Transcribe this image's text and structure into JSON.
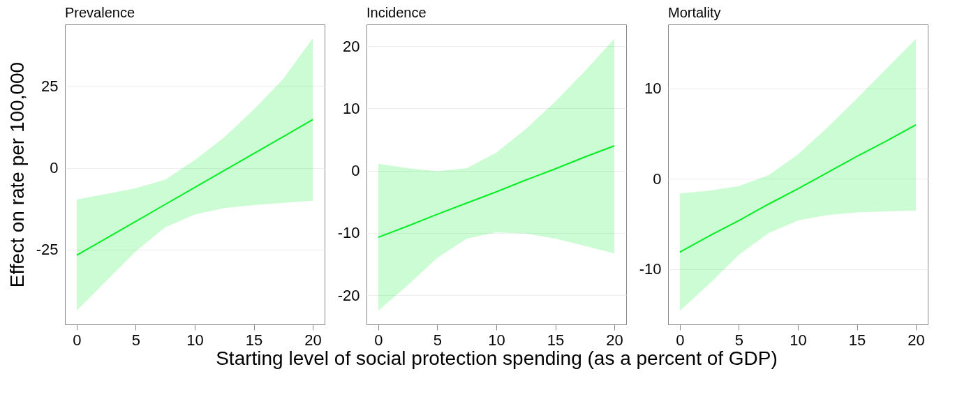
{
  "chart_data": [
    {
      "type": "line",
      "title": "Prevalence",
      "ylabel": "Effect on rate per 100,000",
      "x": [
        0,
        2.5,
        5,
        7.5,
        10,
        12.5,
        15,
        17.5,
        20
      ],
      "xlim": [
        -1,
        21
      ],
      "xticks": [
        0,
        5,
        10,
        15,
        20
      ],
      "ylim": [
        -48,
        44
      ],
      "yticks": [
        -25,
        0,
        25
      ],
      "grid": "y",
      "series": [
        {
          "color": "#00ee22",
          "values": [
            -26.8,
            -21.6,
            -16.4,
            -11.2,
            -6.0,
            -0.8,
            4.4,
            9.6,
            14.8
          ],
          "lower": [
            -43.8,
            -34.7,
            -25.6,
            -18.2,
            -14.3,
            -12.3,
            -11.4,
            -10.7,
            -10.1
          ],
          "upper": [
            -9.7,
            -8.0,
            -6.2,
            -3.6,
            2.4,
            9.4,
            17.9,
            27.3,
            39.8
          ]
        }
      ]
    },
    {
      "type": "line",
      "title": "Incidence",
      "xlabel": "Starting level of social protection spending (as a percent of GDP)",
      "x": [
        0,
        2.5,
        5,
        7.5,
        10,
        12.5,
        15,
        17.5,
        20
      ],
      "xlim": [
        -1,
        21
      ],
      "xticks": [
        0,
        5,
        10,
        15,
        20
      ],
      "ylim": [
        -24.7,
        23.5
      ],
      "yticks": [
        -20,
        -10,
        0,
        10,
        20
      ],
      "grid": "y",
      "series": [
        {
          "color": "#00ee22",
          "values": [
            -10.7,
            -8.9,
            -7.0,
            -5.2,
            -3.4,
            -1.5,
            0.3,
            2.2,
            4.0
          ],
          "lower": [
            -22.5,
            -18.4,
            -14.0,
            -10.9,
            -9.9,
            -10.1,
            -10.9,
            -12.1,
            -13.3
          ],
          "upper": [
            1.1,
            0.4,
            -0.1,
            0.4,
            2.9,
            6.7,
            11.1,
            16.0,
            21.2
          ]
        }
      ]
    },
    {
      "type": "line",
      "title": "Mortality",
      "x": [
        0,
        2.5,
        5,
        7.5,
        10,
        12.5,
        15,
        17.5,
        20
      ],
      "xlim": [
        -1,
        21
      ],
      "xticks": [
        0,
        5,
        10,
        15,
        20
      ],
      "ylim": [
        -16.1,
        17.1
      ],
      "yticks": [
        -10,
        0,
        10
      ],
      "grid": "y",
      "series": [
        {
          "color": "#00ee22",
          "values": [
            -8.1,
            -6.3,
            -4.6,
            -2.8,
            -1.1,
            0.7,
            2.5,
            4.2,
            6.0
          ],
          "lower": [
            -14.6,
            -11.6,
            -8.4,
            -6.0,
            -4.6,
            -4.0,
            -3.7,
            -3.6,
            -3.5
          ],
          "upper": [
            -1.6,
            -1.3,
            -0.8,
            0.4,
            2.7,
            5.7,
            8.9,
            12.2,
            15.5
          ]
        }
      ]
    }
  ]
}
